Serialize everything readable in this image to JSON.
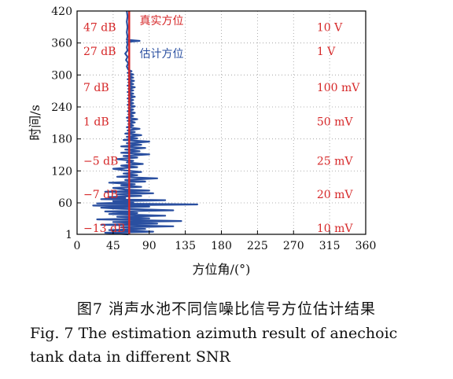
{
  "chart_data": {
    "type": "line",
    "xlabel": "方位角/(°)",
    "ylabel": "时间/s",
    "x_ticks": [
      0,
      45,
      90,
      135,
      180,
      225,
      270,
      315,
      360
    ],
    "y_ticks": [
      1,
      60,
      120,
      180,
      240,
      300,
      360,
      420
    ],
    "xlim": [
      0,
      360
    ],
    "ylim": [
      1,
      420
    ],
    "series": [
      {
        "name": "真实方位",
        "color": "#d62728",
        "points": [
          [
            65,
            1
          ],
          [
            65,
            420
          ]
        ]
      },
      {
        "name": "估计方位",
        "color": "#2a4fa0",
        "points": [
          [
            64,
            1
          ],
          [
            35,
            4
          ],
          [
            95,
            6
          ],
          [
            40,
            9
          ],
          [
            85,
            11
          ],
          [
            55,
            14
          ],
          [
            120,
            16
          ],
          [
            30,
            19
          ],
          [
            100,
            21
          ],
          [
            45,
            24
          ],
          [
            130,
            26
          ],
          [
            25,
            29
          ],
          [
            90,
            31
          ],
          [
            50,
            34
          ],
          [
            110,
            36
          ],
          [
            40,
            39
          ],
          [
            75,
            41
          ],
          [
            35,
            44
          ],
          [
            120,
            46
          ],
          [
            55,
            49
          ],
          [
            30,
            51
          ],
          [
            90,
            53
          ],
          [
            20,
            55
          ],
          [
            150,
            57
          ],
          [
            25,
            59
          ],
          [
            70,
            61
          ],
          [
            45,
            63
          ],
          [
            110,
            65
          ],
          [
            30,
            67
          ],
          [
            60,
            69
          ],
          [
            40,
            71
          ],
          [
            80,
            73
          ],
          [
            50,
            76
          ],
          [
            95,
            78
          ],
          [
            35,
            81
          ],
          [
            90,
            83
          ],
          [
            60,
            85
          ],
          [
            45,
            88
          ],
          [
            80,
            90
          ],
          [
            55,
            93
          ],
          [
            72,
            95
          ],
          [
            40,
            98
          ],
          [
            85,
            100
          ],
          [
            60,
            103
          ],
          [
            100,
            106
          ],
          [
            50,
            109
          ],
          [
            75,
            112
          ],
          [
            58,
            115
          ],
          [
            80,
            118
          ],
          [
            60,
            121
          ],
          [
            45,
            124
          ],
          [
            75,
            127
          ],
          [
            55,
            130
          ],
          [
            82,
            133
          ],
          [
            62,
            136
          ],
          [
            70,
            139
          ],
          [
            50,
            142
          ],
          [
            75,
            145
          ],
          [
            58,
            148
          ],
          [
            90,
            151
          ],
          [
            55,
            154
          ],
          [
            78,
            157
          ],
          [
            60,
            160
          ],
          [
            85,
            163
          ],
          [
            55,
            166
          ],
          [
            80,
            169
          ],
          [
            62,
            172
          ],
          [
            90,
            175
          ],
          [
            58,
            178
          ],
          [
            75,
            181
          ],
          [
            62,
            184
          ],
          [
            80,
            187
          ],
          [
            60,
            190
          ],
          [
            72,
            193
          ],
          [
            63,
            196
          ],
          [
            78,
            199
          ],
          [
            62,
            202
          ],
          [
            70,
            205
          ],
          [
            64,
            208
          ],
          [
            72,
            211
          ],
          [
            63,
            214
          ],
          [
            75,
            217
          ],
          [
            62,
            220
          ],
          [
            70,
            223
          ],
          [
            64,
            226
          ],
          [
            72,
            229
          ],
          [
            63,
            232
          ],
          [
            70,
            235
          ],
          [
            64,
            238
          ],
          [
            72,
            241
          ],
          [
            63,
            244
          ],
          [
            70,
            247
          ],
          [
            64,
            250
          ],
          [
            70,
            253
          ],
          [
            63,
            256
          ],
          [
            72,
            259
          ],
          [
            64,
            262
          ],
          [
            70,
            265
          ],
          [
            63,
            268
          ],
          [
            70,
            271
          ],
          [
            64,
            274
          ],
          [
            72,
            277
          ],
          [
            63,
            280
          ],
          [
            70,
            283
          ],
          [
            64,
            286
          ],
          [
            71,
            289
          ],
          [
            63,
            292
          ],
          [
            70,
            295
          ],
          [
            64,
            298
          ],
          [
            70,
            301
          ],
          [
            63,
            304
          ],
          [
            68,
            307
          ],
          [
            64,
            310
          ],
          [
            62,
            316
          ],
          [
            64,
            322
          ],
          [
            61,
            328
          ],
          [
            63,
            334
          ],
          [
            60,
            340
          ],
          [
            63,
            346
          ],
          [
            62,
            352
          ],
          [
            63,
            358
          ],
          [
            62,
            362
          ],
          [
            78,
            364
          ],
          [
            62,
            366
          ],
          [
            63,
            372
          ],
          [
            62,
            380
          ],
          [
            63,
            390
          ],
          [
            62,
            400
          ],
          [
            63,
            410
          ],
          [
            62,
            420
          ]
        ]
      }
    ],
    "legend_labels": [
      "真实方位",
      "估计方位"
    ],
    "snr_labels": [
      "47 dB",
      "27 dB",
      "7 dB",
      "1 dB",
      "−5 dB",
      "−7 dB",
      "−13 dB"
    ],
    "voltage_labels": [
      "10 V",
      "1 V",
      "100 mV",
      "50 mV",
      "25 mV",
      "20 mV",
      "10 mV"
    ],
    "snr_label_y": [
      390,
      345,
      277,
      213,
      139,
      76,
      13
    ],
    "voltage_label_y": [
      390,
      345,
      277,
      213,
      139,
      76,
      13
    ],
    "annotation_color": "#d62728"
  },
  "caption": {
    "cn": "图7  消声水池不同信噪比信号方位估计结果",
    "en_line1": "Fig. 7  The estimation azimuth result of anechoic",
    "en_line2": "tank data in different SNR"
  }
}
